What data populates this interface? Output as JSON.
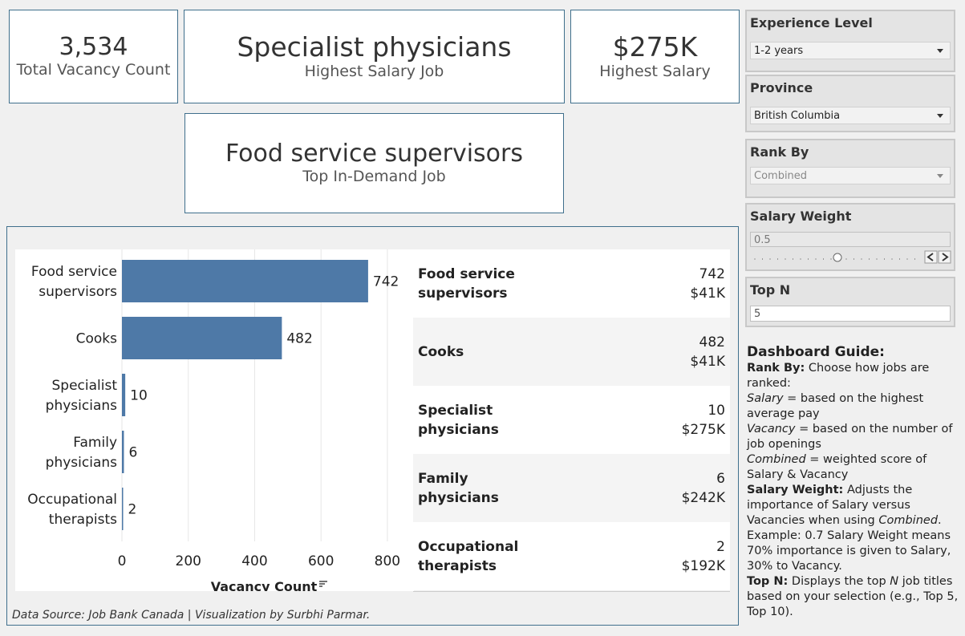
{
  "kpis": {
    "total_vacancy": {
      "value": "3,534",
      "label": "Total Vacancy Count"
    },
    "highest_salary_job": {
      "value": "Specialist physicians",
      "label": "Highest Salary Job"
    },
    "highest_salary": {
      "value": "$275K",
      "label": "Highest Salary"
    },
    "top_demand_job": {
      "value": "Food service supervisors",
      "label": "Top In-Demand Job"
    }
  },
  "chart_data": {
    "type": "bar",
    "orientation": "horizontal",
    "categories": [
      [
        "Food service",
        "supervisors"
      ],
      [
        "Cooks"
      ],
      [
        "Specialist",
        "physicians"
      ],
      [
        "Family",
        "physicians"
      ],
      [
        "Occupational",
        "therapists"
      ]
    ],
    "values": [
      742,
      482,
      10,
      6,
      2
    ],
    "xlim": [
      0,
      880
    ],
    "xticks": [
      0,
      200,
      400,
      600,
      800
    ],
    "xlabel": "Vacancy Count",
    "bar_color": "#4e79a7",
    "grid": true
  },
  "table": {
    "rows": [
      {
        "name": [
          "Food service",
          "supervisors"
        ],
        "vacancy": "742",
        "salary": "$41K"
      },
      {
        "name": [
          "Cooks"
        ],
        "vacancy": "482",
        "salary": "$41K"
      },
      {
        "name": [
          "Specialist",
          "physicians"
        ],
        "vacancy": "10",
        "salary": "$275K"
      },
      {
        "name": [
          "Family",
          "physicians"
        ],
        "vacancy": "6",
        "salary": "$242K"
      },
      {
        "name": [
          "Occupational",
          "therapists"
        ],
        "vacancy": "2",
        "salary": "$192K"
      }
    ]
  },
  "footer": {
    "source": "Data Source: Job Bank Canada | Visualization by Surbhi Parmar."
  },
  "filters": {
    "experience": {
      "title": "Experience Level",
      "value": "1-2 years"
    },
    "province": {
      "title": "Province",
      "value": "British Columbia"
    },
    "rank_by": {
      "title": "Rank By",
      "value": "Combined"
    },
    "salary_weight": {
      "title": "Salary Weight",
      "value": "0.5",
      "slider_fraction": 0.5
    },
    "top_n": {
      "title": "Top N",
      "value": "5"
    }
  },
  "guide": {
    "title": "Dashboard Guide:",
    "rank_by_label": "Rank By:",
    "rank_by_text": " Choose how jobs are ranked:",
    "salary_term": "Salary",
    "salary_def": " = based on the highest average pay",
    "vacancy_term": "Vacancy",
    "vacancy_def": " = based on the number of job openings",
    "combined_term": "Combined",
    "combined_def": " = weighted score of Salary & Vacancy",
    "weight_label": "Salary Weight:",
    "weight_text_1": "  Adjusts the importance of Salary versus Vacancies when using ",
    "weight_term": "Combined",
    "weight_text_2": ". Example: 0.7 Salary Weight means 70% importance is given to Salary, 30% to Vacancy.",
    "topn_label": "Top N:",
    "topn_text_1": " Displays the top ",
    "topn_term": "N",
    "topn_text_2": " job titles based on your selection (e.g., Top 5, Top 10)."
  }
}
